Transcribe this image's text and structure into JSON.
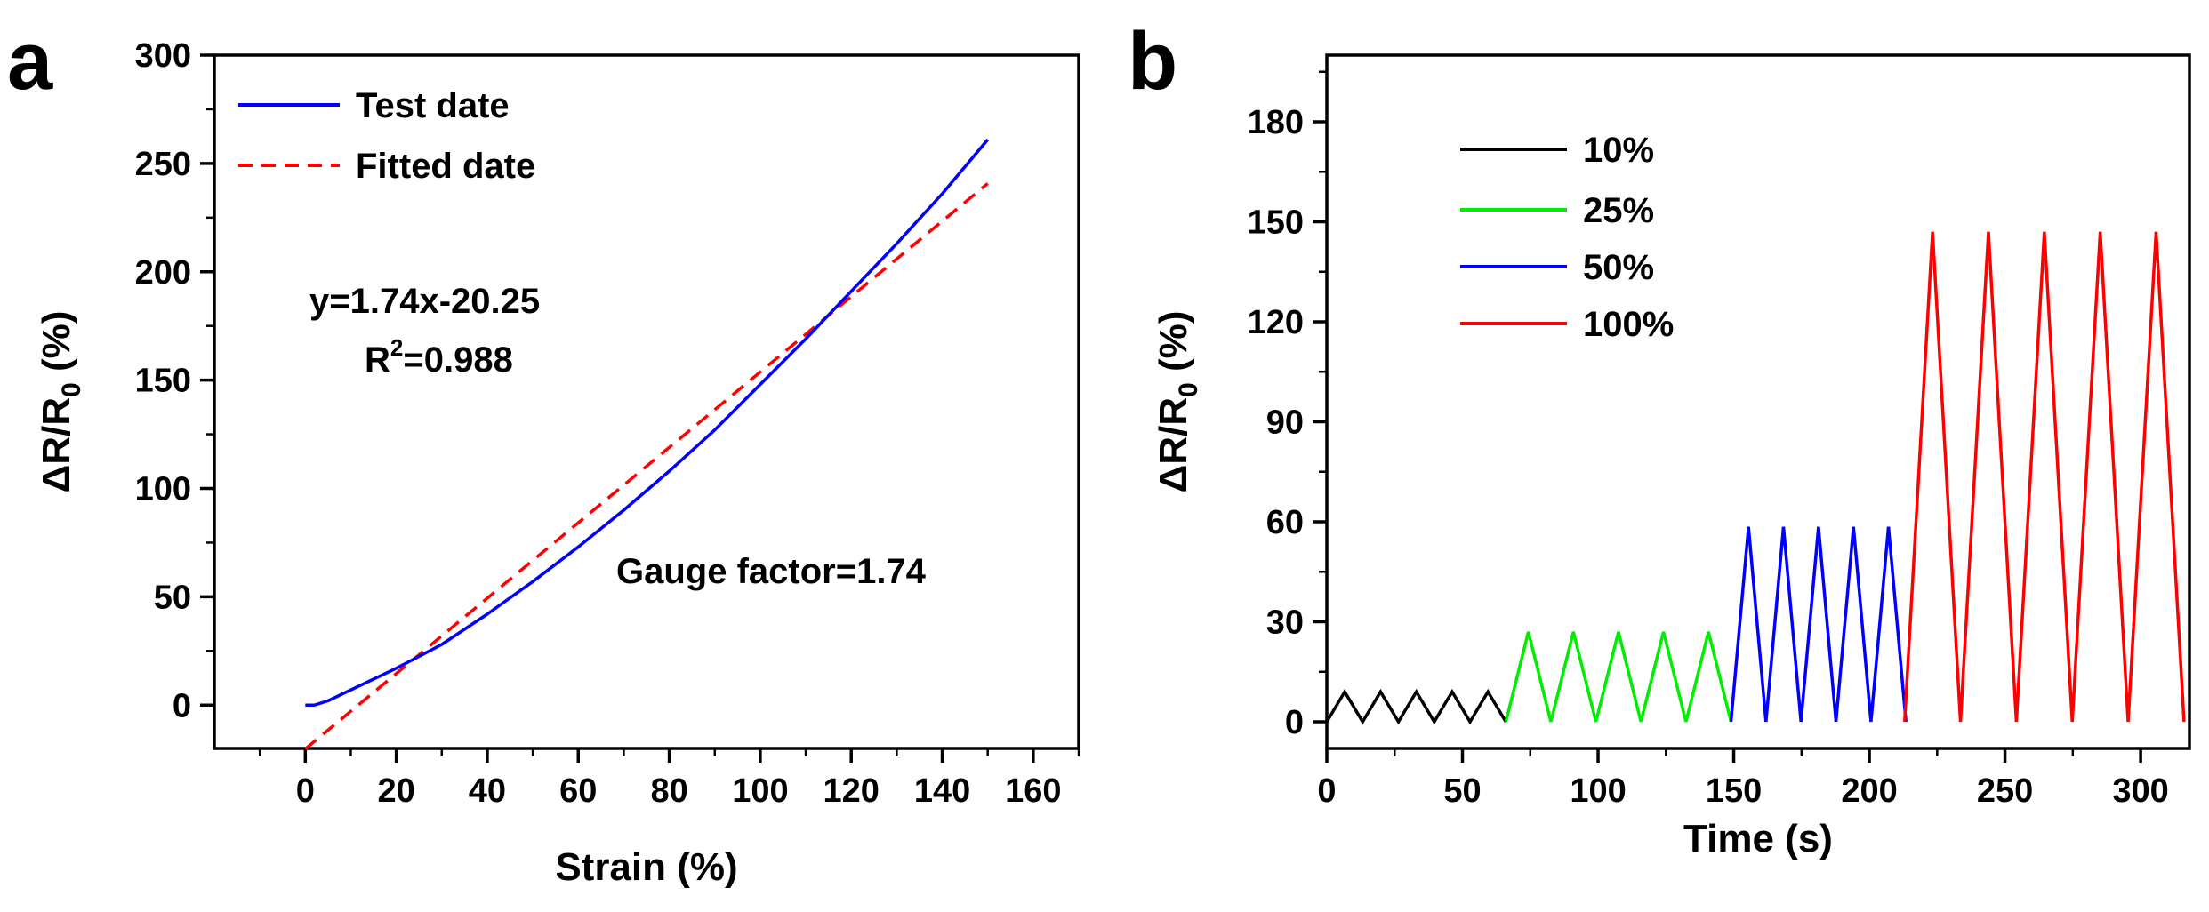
{
  "chart_data": [
    {
      "panel_label": "a",
      "type": "line",
      "xlabel": "Strain (%)",
      "ylabel_main": "ΔR/R",
      "ylabel_sub": "0",
      "ylabel_unit": " (%)",
      "xlim": [
        -20,
        170
      ],
      "ylim": [
        -20,
        300
      ],
      "xticks": [
        0,
        20,
        40,
        60,
        80,
        100,
        120,
        140,
        160
      ],
      "yticks": [
        0,
        50,
        100,
        150,
        200,
        250,
        300
      ],
      "legend": {
        "placement": "top-left"
      },
      "series": [
        {
          "name": "Test date",
          "color": "#0000ff",
          "style": "solid",
          "x": [
            0,
            2,
            5,
            10,
            20,
            30,
            40,
            50,
            60,
            70,
            80,
            90,
            100,
            110,
            120,
            130,
            140,
            150
          ],
          "y": [
            0,
            0,
            2,
            7,
            17,
            28,
            42,
            57,
            73,
            90,
            108,
            127,
            148,
            169,
            191,
            213,
            236,
            261
          ]
        },
        {
          "name": "Fitted date",
          "color": "#ff0000",
          "style": "dashed",
          "x": [
            0,
            150
          ],
          "y": [
            -20.25,
            240.75
          ]
        }
      ],
      "annotations": {
        "equation": "y=1.74x-20.25",
        "r2_prefix": "R",
        "r2_sup": "2",
        "r2_value": "=0.988",
        "gauge": "Gauge factor=1.74"
      }
    },
    {
      "panel_label": "b",
      "type": "line",
      "xlabel": "Time (s)",
      "ylabel_main": "ΔR/R",
      "ylabel_sub": "0",
      "ylabel_unit": " (%)",
      "xlim": [
        0,
        318
      ],
      "ylim": [
        -8,
        200
      ],
      "xticks": [
        0,
        50,
        100,
        150,
        200,
        250,
        300
      ],
      "yticks": [
        0,
        30,
        60,
        90,
        120,
        150,
        180
      ],
      "legend": {
        "placement": "top-left"
      },
      "series": [
        {
          "name": "10%",
          "color": "#000000",
          "t_start": 0,
          "period": 13.2,
          "cycles": 5,
          "peak": 9
        },
        {
          "name": "25%",
          "color": "#00ee00",
          "t_start": 66,
          "period": 16.6,
          "cycles": 5,
          "peak": 27
        },
        {
          "name": "50%",
          "color": "#0000ff",
          "t_start": 149,
          "period": 12.9,
          "cycles": 5,
          "peak": 58.5
        },
        {
          "name": "100%",
          "color": "#ff0000",
          "t_start": 213,
          "period": 20.6,
          "cycles": 5,
          "peak": 147
        }
      ]
    }
  ]
}
